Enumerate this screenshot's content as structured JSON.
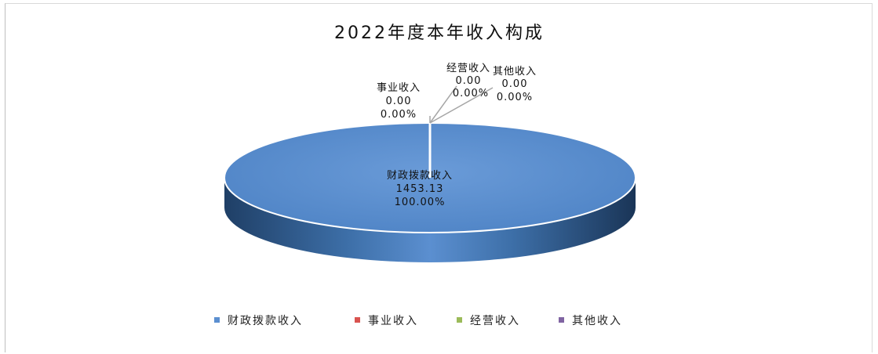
{
  "chart_data": {
    "type": "pie",
    "title": "2022年度本年收入构成",
    "style": "3d",
    "legend_position": "bottom",
    "slices": [
      {
        "name": "财政拨款收入",
        "value": "1453.13",
        "percent": "100.00%",
        "color": "#5b8fd0"
      },
      {
        "name": "事业收入",
        "value": "0.00",
        "percent": "0.00%",
        "color": "#d9534f"
      },
      {
        "name": "经营收入",
        "value": "0.00",
        "percent": "0.00%",
        "color": "#9bbb59"
      },
      {
        "name": "其他收入",
        "value": "0.00",
        "percent": "0.00%",
        "color": "#8064a2"
      }
    ]
  }
}
